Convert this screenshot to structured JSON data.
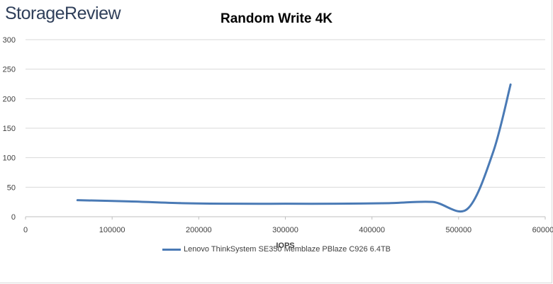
{
  "brand": {
    "logo_text": "StorageReview"
  },
  "chart_data": {
    "type": "line",
    "title": "Random Write 4K",
    "xlabel": "IOPS",
    "ylabel": "",
    "xlim": [
      0,
      600000
    ],
    "ylim": [
      0,
      300
    ],
    "x_ticks": [
      0,
      100000,
      200000,
      300000,
      400000,
      500000,
      600000
    ],
    "x_tick_labels": [
      "0",
      "100000",
      "200000",
      "300000",
      "400000",
      "500000",
      "600000"
    ],
    "y_ticks": [
      0,
      50,
      100,
      150,
      200,
      250,
      300
    ],
    "grid": "horizontal",
    "legend_position": "bottom",
    "series": [
      {
        "name": "Lenovo ThinkSystem SE350 Memblaze PBlaze C926 6.4TB",
        "color": "#4a7ab5",
        "x": [
          60000,
          120000,
          180000,
          240000,
          300000,
          360000,
          420000,
          470000,
          510000,
          540000,
          560000
        ],
        "values": [
          28,
          26,
          23,
          22,
          22,
          22,
          23,
          25,
          13,
          110,
          224
        ]
      }
    ]
  }
}
